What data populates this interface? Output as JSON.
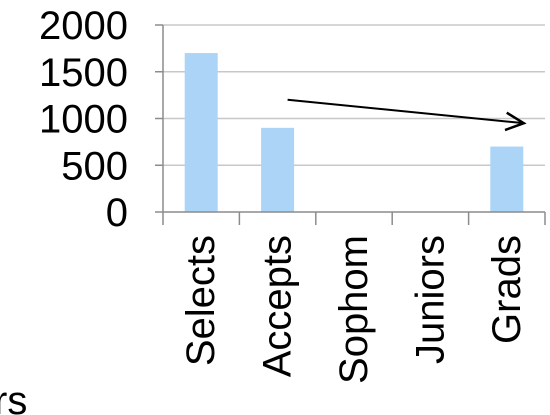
{
  "chart_data": {
    "type": "bar",
    "categories": [
      "Selects",
      "Accepts",
      "Sophom",
      "Juniors",
      "Grads"
    ],
    "values": [
      1700,
      900,
      0,
      0,
      700
    ],
    "ylim": [
      0,
      2000
    ],
    "yticks": [
      "2000",
      "1500",
      "1000",
      "500",
      "0"
    ],
    "grid": true,
    "legend": "none",
    "colors": {
      "bar": "#abd4f7",
      "grid": "#c8c8c8",
      "axis": "#8c8c8c",
      "arrow": "#000000"
    },
    "annotations": [
      {
        "type": "arrow",
        "from": {
          "x": "Accepts",
          "y": 1200
        },
        "to": {
          "x": "Grads",
          "y": 950
        }
      }
    ]
  },
  "partial_text": "rs"
}
